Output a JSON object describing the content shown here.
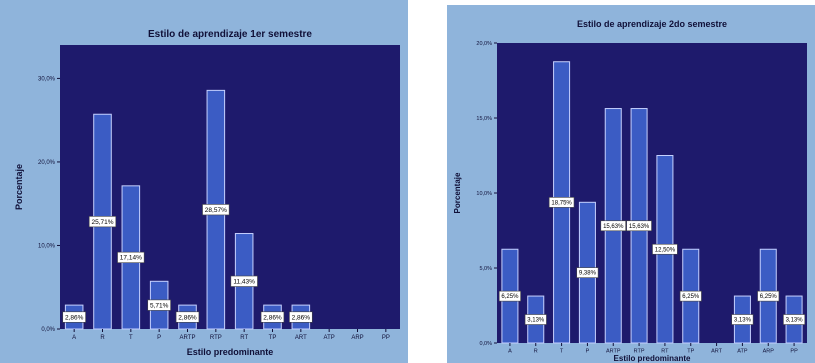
{
  "colors": {
    "outer_bg": "#8fb4db",
    "plot_bg": "#1e1a6c",
    "bar_fill": "#3b5cc4",
    "bar_stroke": "#c6d1ff",
    "text": "#101038",
    "label_bg": "#ffffff"
  },
  "chart_data": [
    {
      "type": "bar",
      "title": "Estilo de aprendizaje 1er semestre",
      "xlabel": "Estilo predominante",
      "ylabel": "Porcentaje",
      "categories": [
        "A",
        "R",
        "T",
        "P",
        "ARTP",
        "RTP",
        "RT",
        "TP",
        "ART",
        "ATP",
        "ARP",
        "PP"
      ],
      "values": [
        2.86,
        25.71,
        17.14,
        5.71,
        2.86,
        28.57,
        11.43,
        2.86,
        2.86,
        0,
        0,
        0
      ],
      "data_labels": [
        "2,86%",
        "25,71%",
        "17,14%",
        "5,71%",
        "2,86%",
        "28,57%",
        "11,43%",
        "2,86%",
        "2,86%",
        null,
        null,
        null
      ],
      "ylim": [
        0,
        34
      ],
      "yticks": [
        0,
        10,
        20,
        30
      ],
      "ytick_labels": [
        "0,0%",
        "10,0%",
        "20,0%",
        "30,0%"
      ],
      "grid": false
    },
    {
      "type": "bar",
      "title": "Estilo de aprendizaje 2do semestre",
      "xlabel": "Estilo predominante",
      "ylabel": "Porcentaje",
      "categories": [
        "A",
        "R",
        "T",
        "P",
        "ARTP",
        "RTP",
        "RT",
        "TP",
        "ART",
        "ATP",
        "ARP",
        "PP"
      ],
      "values": [
        6.25,
        3.13,
        18.75,
        9.38,
        15.63,
        15.63,
        12.5,
        6.25,
        0,
        3.13,
        6.25,
        3.13
      ],
      "data_labels": [
        "6,25%",
        "3,13%",
        "18,75%",
        "9,38%",
        "15,63%",
        "15,63%",
        "12,50%",
        "6,25%",
        null,
        "3,13%",
        "6,25%",
        "3,13%"
      ],
      "ylim": [
        0,
        20
      ],
      "yticks": [
        0,
        5,
        10,
        15,
        20
      ],
      "ytick_labels": [
        "0,0%",
        "5,0%",
        "10,0%",
        "15,0%",
        "20,0%"
      ],
      "grid": false
    }
  ]
}
